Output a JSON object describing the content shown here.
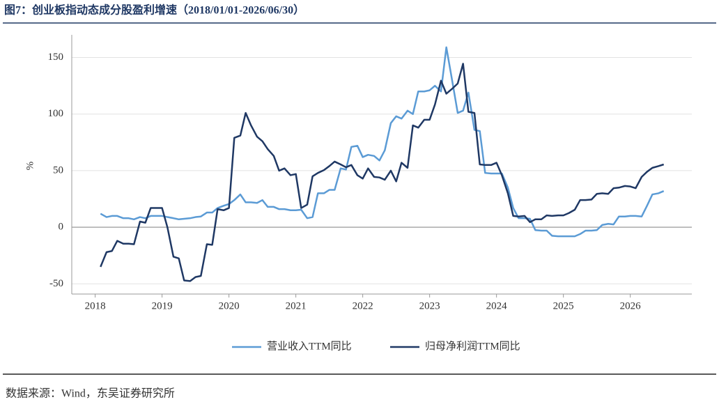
{
  "chart_data": {
    "type": "line",
    "title": "图7：创业板指动态成分股盈利增速（2018/01/01-2026/06/30）",
    "y_label": "%",
    "source": "数据来源：Wind，东吴证券研究所",
    "x": [
      2018.08,
      2018.17,
      2018.25,
      2018.33,
      2018.42,
      2018.5,
      2018.58,
      2018.67,
      2018.75,
      2018.83,
      2018.92,
      2019,
      2019.08,
      2019.17,
      2019.25,
      2019.33,
      2019.42,
      2019.5,
      2019.58,
      2019.67,
      2019.75,
      2019.83,
      2019.92,
      2020,
      2020.08,
      2020.17,
      2020.25,
      2020.33,
      2020.42,
      2020.5,
      2020.58,
      2020.67,
      2020.75,
      2020.83,
      2020.92,
      2021,
      2021.08,
      2021.17,
      2021.25,
      2021.33,
      2021.42,
      2021.5,
      2021.58,
      2021.67,
      2021.75,
      2021.83,
      2021.92,
      2022,
      2022.08,
      2022.17,
      2022.25,
      2022.33,
      2022.42,
      2022.5,
      2022.58,
      2022.67,
      2022.75,
      2022.83,
      2022.92,
      2023,
      2023.08,
      2023.17,
      2023.25,
      2023.33,
      2023.42,
      2023.5,
      2023.58,
      2023.67,
      2023.75,
      2023.83,
      2023.92,
      2024,
      2024.08,
      2024.17,
      2024.25,
      2024.33,
      2024.42,
      2024.5,
      2024.58,
      2024.67,
      2024.75,
      2024.83,
      2024.92,
      2025,
      2025.08,
      2025.17,
      2025.25,
      2025.33,
      2025.42,
      2025.5,
      2025.58,
      2025.67,
      2025.75,
      2025.83,
      2025.92,
      2026,
      2026.08,
      2026.17,
      2026.25,
      2026.33,
      2026.42,
      2026.5
    ],
    "series": [
      {
        "name": "营业收入TTM同比",
        "color": "#5b9bd5",
        "values": [
          12,
          9,
          10,
          10,
          8,
          8,
          7,
          9,
          8,
          10,
          10,
          10,
          9,
          8,
          7,
          7.5,
          8,
          9,
          9.5,
          13,
          13,
          17,
          19,
          20.5,
          24,
          29,
          22,
          22,
          21.5,
          24,
          18,
          18,
          16,
          16,
          15,
          15,
          15.5,
          8,
          9,
          30,
          30,
          33,
          33,
          52,
          51,
          71,
          72,
          62,
          64,
          63,
          59,
          68,
          92,
          98,
          96,
          103,
          100,
          120,
          120,
          121,
          125,
          120,
          159,
          132,
          101,
          103,
          119,
          86,
          85,
          48,
          47.5,
          47.5,
          47.5,
          35,
          17,
          8,
          8,
          7.5,
          -2.5,
          -3,
          -3,
          -7.5,
          -8,
          -8,
          -8,
          -8,
          -6,
          -3,
          -3,
          -2.5,
          2,
          3,
          2.5,
          9.5,
          9.5,
          10,
          10,
          9.5,
          19,
          29,
          30,
          32
        ]
      },
      {
        "name": "归母净利润TTM同比",
        "color": "#1f3864",
        "values": [
          -35,
          -22,
          -21,
          -12,
          -14.5,
          -14.5,
          -15,
          5,
          4,
          17,
          17,
          17,
          0,
          -26,
          -27.5,
          -47,
          -47.5,
          -44,
          -43,
          -15,
          -15.5,
          16,
          15,
          17,
          79,
          81,
          101,
          90,
          80,
          76,
          69,
          63,
          50,
          52,
          46,
          47,
          17,
          20,
          45,
          48,
          50.5,
          54,
          58,
          55.5,
          53,
          55,
          46,
          43,
          52,
          44.5,
          44,
          42,
          50,
          40.5,
          57,
          52.5,
          90,
          88,
          95,
          95,
          108.5,
          129.5,
          118,
          122,
          127,
          144.5,
          102,
          101,
          55.5,
          55,
          55,
          57,
          46,
          30,
          10,
          9.5,
          10,
          4.5,
          7,
          7,
          10.5,
          10,
          10.5,
          10.5,
          12.5,
          15.5,
          24,
          24,
          24.5,
          29.5,
          30,
          29.5,
          34.5,
          35,
          36.5,
          36,
          34.5,
          44.5,
          49,
          52.5,
          54,
          55.5
        ]
      }
    ],
    "xlim": [
      2017.65,
      2026.92
    ],
    "xticks": [
      2018,
      2019,
      2020,
      2021,
      2022,
      2023,
      2024,
      2025,
      2026
    ],
    "ylim": [
      -59,
      170
    ],
    "yticks": [
      -50,
      0,
      50,
      100,
      150
    ],
    "grid": true,
    "legend": "bottom"
  }
}
